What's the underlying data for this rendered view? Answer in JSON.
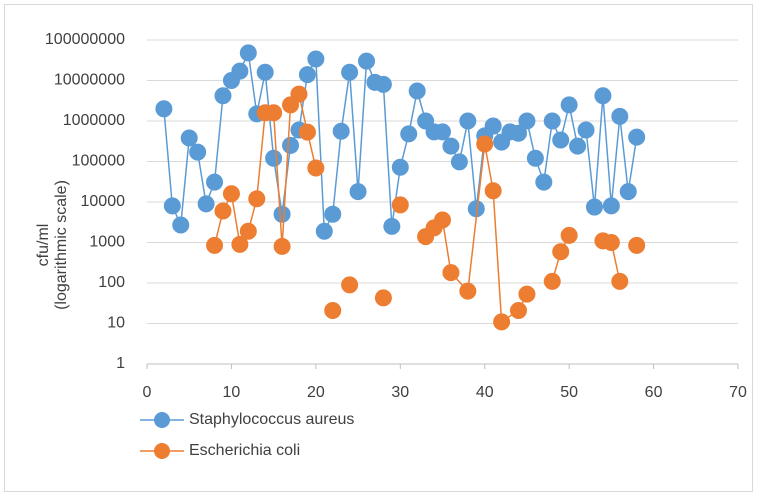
{
  "chart_data": {
    "type": "line",
    "ylabel": [
      "cfu/ml",
      "(logarithmic scale)"
    ],
    "xlim": [
      0,
      70
    ],
    "xticks": [
      0,
      10,
      20,
      30,
      40,
      50,
      60,
      70
    ],
    "ylim": [
      1,
      100000000
    ],
    "yticks": [
      1,
      10,
      100,
      1000,
      10000,
      100000,
      1000000,
      10000000,
      100000000
    ],
    "log_y": true,
    "grid": true,
    "legend": "bottom-left",
    "series": [
      {
        "name": "Staphylococcus aureus",
        "color": "#5b9bd5",
        "x": [
          2,
          3,
          4,
          5,
          6,
          7,
          8,
          9,
          10,
          11,
          12,
          13,
          14,
          15,
          16,
          17,
          18,
          19,
          20,
          21,
          22,
          23,
          24,
          25,
          26,
          27,
          28,
          29,
          30,
          31,
          32,
          33,
          34,
          35,
          36,
          37,
          38,
          39,
          40,
          41,
          42,
          43,
          44,
          45,
          46,
          47,
          48,
          49,
          50,
          51,
          52,
          53,
          54,
          55,
          56,
          57,
          58
        ],
        "values": [
          2000000,
          8000,
          2700,
          380000,
          170000,
          9000,
          31000,
          4200000,
          10000000,
          17000000,
          48000000,
          1500000,
          16000000,
          120000,
          5000,
          250000,
          600000,
          14000000,
          34000000,
          1900,
          5000,
          560000,
          16000000,
          18000,
          30000000,
          9000000,
          8000000,
          2500,
          72000,
          480000,
          5500000,
          1000000,
          540000,
          540000,
          240000,
          98000,
          1000000,
          6800,
          430000,
          750000,
          300000,
          540000,
          500000,
          1000000,
          120000,
          31000,
          1000000,
          340000,
          2500000,
          240000,
          600000,
          7500,
          4200000,
          8000,
          1300000,
          18000,
          400000
        ]
      },
      {
        "name": "Escherichia coli",
        "color": "#ed7d31",
        "x": [
          8,
          9,
          10,
          11,
          12,
          13,
          14,
          15,
          16,
          17,
          18,
          19,
          20,
          21,
          22,
          23,
          24,
          25,
          28,
          29,
          30,
          31,
          33,
          34,
          35,
          36,
          38,
          40,
          41,
          42,
          44,
          45,
          46,
          48,
          49,
          50,
          51,
          54,
          55,
          56,
          57,
          58
        ],
        "values": [
          850,
          6000,
          16000,
          900,
          1900,
          12000,
          1600000,
          1600000,
          800,
          2500000,
          4600000,
          530000,
          69000,
          null,
          21,
          null,
          90,
          null,
          43,
          null,
          8500,
          null,
          1400,
          2300,
          3600,
          180,
          63,
          270000,
          19000,
          11,
          21,
          53,
          null,
          110,
          590,
          1500,
          null,
          1100,
          1000,
          110,
          null,
          850
        ]
      }
    ]
  }
}
